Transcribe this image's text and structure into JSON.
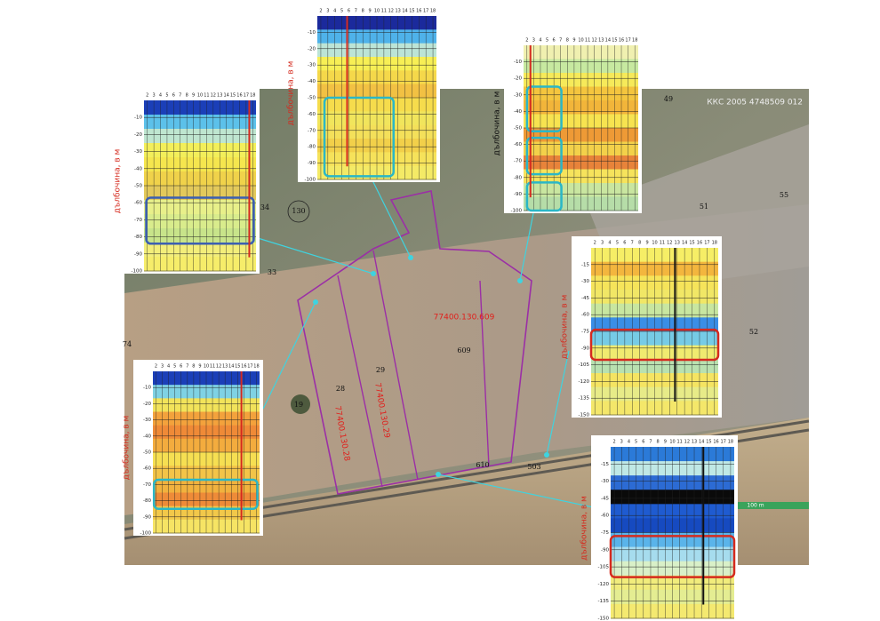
{
  "map": {
    "stamp": "ККС 2005 4748509 012",
    "scale_label": "100 m",
    "parcel_ids": [
      "130",
      "34",
      "33",
      "49",
      "51",
      "55",
      "52",
      "74",
      "609",
      "29",
      "28",
      "19",
      "610",
      "503"
    ],
    "cadastral_ids": [
      "77400.130.609",
      "77400.130.29",
      "77400.130.28"
    ]
  },
  "insets": [
    {
      "y_label": "дълбочина, в м",
      "xticks": [
        2,
        3,
        4,
        5,
        6,
        7,
        8,
        9,
        10,
        11,
        12,
        13,
        14,
        15,
        16,
        17,
        18
      ],
      "yticks": [
        -10,
        -20,
        -30,
        -40,
        -50,
        -60,
        -70,
        -80,
        -90,
        -100
      ]
    },
    {
      "y_label": "дълбочина, в м",
      "xticks": [
        2,
        3,
        4,
        5,
        6,
        7,
        8,
        9,
        10,
        11,
        12,
        13,
        14,
        15,
        16,
        17,
        18
      ],
      "yticks": [
        -10,
        -20,
        -30,
        -40,
        -50,
        -60,
        -70,
        -80,
        -90,
        -100
      ]
    },
    {
      "y_label": "дълбочина, в м",
      "xticks": [
        2,
        3,
        4,
        5,
        6,
        7,
        8,
        9,
        10,
        11,
        12,
        13,
        14,
        15,
        16,
        17,
        18
      ],
      "yticks": [
        -10,
        -20,
        -30,
        -40,
        -50,
        -60,
        -70,
        -80,
        -90,
        -100
      ]
    },
    {
      "y_label": "дълбочина, в м",
      "xticks": [
        2,
        3,
        4,
        5,
        6,
        7,
        8,
        9,
        10,
        11,
        12,
        13,
        14,
        15,
        16,
        17,
        18
      ],
      "yticks": [
        -10,
        -20,
        -30,
        -40,
        -50,
        -60,
        -70,
        -80,
        -90,
        -100
      ]
    },
    {
      "y_label": "дълбочина, в м",
      "xticks": [
        2,
        3,
        4,
        5,
        6,
        7,
        8,
        9,
        10,
        11,
        12,
        13,
        14,
        15,
        16,
        17,
        18
      ],
      "yticks": [
        -15,
        -30,
        -45,
        -60,
        -75,
        -90,
        -105,
        -120,
        -135,
        -150
      ]
    },
    {
      "y_label": "дълбочина, в м",
      "xticks": [
        2,
        3,
        4,
        5,
        6,
        7,
        8,
        9,
        10,
        11,
        12,
        13,
        14,
        15,
        16,
        17,
        18
      ],
      "yticks": [
        -15,
        -30,
        -45,
        -60,
        -75,
        -90,
        -105,
        -120,
        -135,
        -150
      ]
    }
  ]
}
